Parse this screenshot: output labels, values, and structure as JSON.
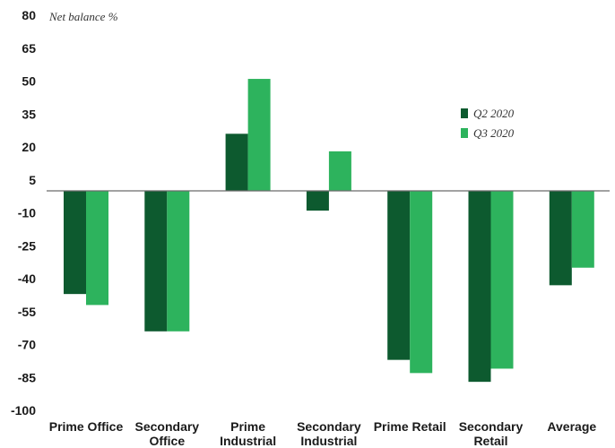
{
  "chart_data": {
    "type": "bar",
    "unit_label": "Net balance %",
    "categories": [
      [
        "Prime Office"
      ],
      [
        "Secondary",
        "Office"
      ],
      [
        "Prime",
        "Industrial"
      ],
      [
        "Secondary",
        "Industrial"
      ],
      [
        "Prime Retail"
      ],
      [
        "Secondary",
        "Retail"
      ],
      [
        "Average"
      ]
    ],
    "series": [
      {
        "name": "Q2 2020",
        "color": "#0d5a2f",
        "values": [
          -47,
          -64,
          26,
          -9,
          -77,
          -87,
          -43
        ]
      },
      {
        "name": "Q3 2020",
        "color": "#2db35d",
        "values": [
          -52,
          -64,
          51,
          18,
          -83,
          -81,
          -35
        ]
      }
    ],
    "yticks": [
      "80",
      "65",
      "50",
      "35",
      "20",
      "5",
      "-10",
      "-25",
      "-40",
      "-55",
      "-70",
      "-85",
      "-100"
    ],
    "ylim": [
      -100,
      80
    ],
    "legend_position": "upper-right",
    "grid": false
  }
}
